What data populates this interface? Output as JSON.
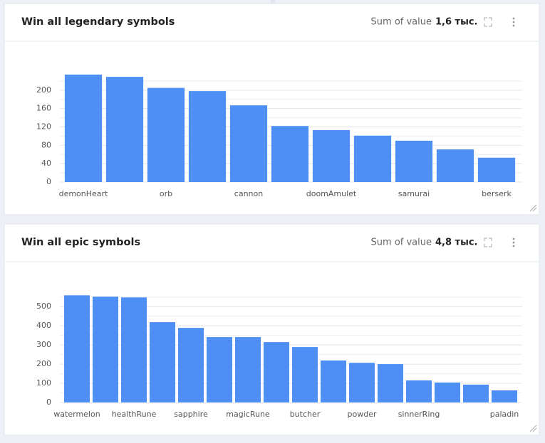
{
  "chart_data": [
    {
      "type": "bar",
      "title": "Win all legendary symbols",
      "summary_label": "Sum of value",
      "summary_value": "1,6 тыс.",
      "categories": [
        "demonHeart",
        null,
        "orb",
        null,
        "cannon",
        null,
        "doomAmulet",
        null,
        "samurai",
        null,
        "berserk"
      ],
      "values": [
        234,
        229,
        205,
        198,
        167,
        122,
        113,
        101,
        90,
        71,
        53
      ],
      "color": "#4d8ff5",
      "ylim": [
        0,
        240
      ],
      "yticks": [
        0,
        40,
        80,
        120,
        160,
        200
      ],
      "minor_yticks": [
        20,
        60,
        100,
        140,
        180,
        220
      ],
      "grid": true
    },
    {
      "type": "bar",
      "title": "Win all epic symbols",
      "summary_label": "Sum of value",
      "summary_value": "4,8 тыс.",
      "categories": [
        "watermelon",
        null,
        "healthRune",
        null,
        "sapphire",
        null,
        "magicRune",
        null,
        "butcher",
        null,
        "powder",
        null,
        "sinnerRing",
        null,
        null,
        "paladin"
      ],
      "values": [
        559,
        552,
        548,
        419,
        389,
        341,
        341,
        315,
        289,
        219,
        207,
        200,
        115,
        104,
        93,
        63
      ],
      "color": "#4d8ff5",
      "ylim": [
        0,
        575
      ],
      "yticks": [
        0,
        100,
        200,
        300,
        400,
        500
      ],
      "minor_yticks": [
        50,
        150,
        250,
        350,
        450,
        550
      ],
      "grid": true
    }
  ]
}
